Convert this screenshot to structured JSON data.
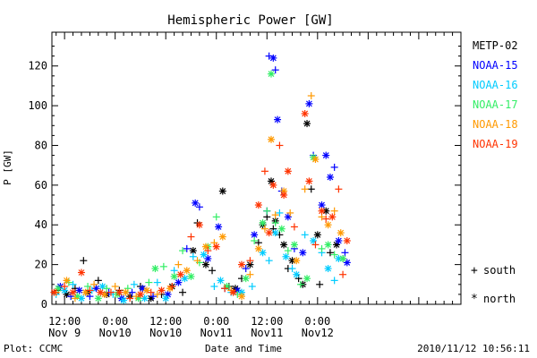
{
  "chart_data": {
    "type": "scatter",
    "title": "Hemispheric Power [GW]",
    "ylabel": "P [GW]",
    "xlabel": "Date and Time",
    "footer_left": "Plot: CCMC",
    "footer_right": "2010/11/12 10:56:11",
    "ylim": [
      0,
      137
    ],
    "xlim": [
      -3,
      94
    ],
    "x_unit": "hours since 2010-11-09 12:00 UT",
    "y_ticks": [
      0,
      20,
      40,
      60,
      80,
      100,
      120
    ],
    "x_ticks": [
      {
        "x": 0,
        "line1": "12:00",
        "line2": "Nov 9"
      },
      {
        "x": 12,
        "line1": "0:00",
        "line2": "Nov10"
      },
      {
        "x": 24,
        "line1": "12:00",
        "line2": "Nov10"
      },
      {
        "x": 36,
        "line1": "0:00",
        "line2": "Nov11"
      },
      {
        "x": 48,
        "line1": "12:00",
        "line2": "Nov11"
      },
      {
        "x": 60,
        "line1": "0:00",
        "line2": "Nov12"
      }
    ],
    "marker_legend": [
      {
        "symbol": "+",
        "label": "south"
      },
      {
        "symbol": "*",
        "label": "north"
      }
    ],
    "series": [
      {
        "name": "METP-02",
        "color": "#000000",
        "points": [
          [
            -1.5,
            7,
            "+"
          ],
          [
            0.5,
            5,
            "*"
          ],
          [
            2.5,
            8,
            "+"
          ],
          [
            4.5,
            22,
            "+"
          ],
          [
            5.5,
            6,
            "*"
          ],
          [
            8,
            12,
            "+"
          ],
          [
            10,
            5,
            "*"
          ],
          [
            13,
            7,
            "+"
          ],
          [
            15.5,
            4,
            "*"
          ],
          [
            18,
            9,
            "+"
          ],
          [
            20.5,
            3,
            "*"
          ],
          [
            23,
            5,
            "+"
          ],
          [
            25.5,
            9,
            "*"
          ],
          [
            28,
            6,
            "+"
          ],
          [
            30.5,
            27,
            "*"
          ],
          [
            31.5,
            41,
            "+"
          ],
          [
            33.5,
            20,
            "*"
          ],
          [
            35,
            17,
            "+"
          ],
          [
            37.5,
            57,
            "*"
          ],
          [
            39,
            9,
            "+"
          ],
          [
            40.5,
            8,
            "*"
          ],
          [
            42,
            13,
            "+"
          ],
          [
            44,
            20,
            "*"
          ],
          [
            46,
            31,
            "+"
          ],
          [
            47,
            40,
            "*"
          ],
          [
            48,
            44,
            "+"
          ],
          [
            49,
            62,
            "*"
          ],
          [
            49.5,
            38,
            "+"
          ],
          [
            50,
            42,
            "*"
          ],
          [
            51,
            35,
            "+"
          ],
          [
            52,
            30,
            "*"
          ],
          [
            53,
            18,
            "+"
          ],
          [
            54,
            22,
            "*"
          ],
          [
            55.5,
            13,
            "+"
          ],
          [
            56.5,
            10,
            "*"
          ],
          [
            57.5,
            91,
            "*"
          ],
          [
            58.5,
            58,
            "+"
          ],
          [
            60,
            35,
            "*"
          ],
          [
            60.5,
            10,
            "+"
          ],
          [
            62,
            47,
            "*"
          ],
          [
            63,
            26,
            "+"
          ],
          [
            64.5,
            30,
            "*"
          ],
          [
            66,
            23,
            "+"
          ]
        ]
      },
      {
        "name": "NOAA-15",
        "color": "#0000ff",
        "points": [
          [
            -1,
            9,
            "*"
          ],
          [
            1.5,
            4,
            "+"
          ],
          [
            3.5,
            7,
            "*"
          ],
          [
            6,
            4,
            "+"
          ],
          [
            7.5,
            8,
            "*"
          ],
          [
            10.5,
            6,
            "+"
          ],
          [
            13.5,
            3,
            "*"
          ],
          [
            16,
            6,
            "+"
          ],
          [
            18.5,
            8,
            "*"
          ],
          [
            21,
            4,
            "+"
          ],
          [
            24.5,
            5,
            "*"
          ],
          [
            27,
            11,
            "*"
          ],
          [
            29,
            28,
            "+"
          ],
          [
            31,
            51,
            "*"
          ],
          [
            32,
            49,
            "+"
          ],
          [
            34,
            23,
            "*"
          ],
          [
            36.5,
            39,
            "*"
          ],
          [
            38,
            8,
            "+"
          ],
          [
            41,
            7,
            "*"
          ],
          [
            43,
            18,
            "+"
          ],
          [
            45,
            35,
            "*"
          ],
          [
            48,
            47,
            "+"
          ],
          [
            48.5,
            125,
            "+"
          ],
          [
            49.5,
            124,
            "*"
          ],
          [
            50,
            118,
            "+"
          ],
          [
            50.5,
            93,
            "*"
          ],
          [
            51.5,
            57,
            "+"
          ],
          [
            53,
            44,
            "*"
          ],
          [
            54.5,
            28,
            "+"
          ],
          [
            56.5,
            26,
            "*"
          ],
          [
            58,
            101,
            "*"
          ],
          [
            59,
            75,
            "+"
          ],
          [
            61,
            50,
            "*"
          ],
          [
            62,
            75,
            "*"
          ],
          [
            63,
            64,
            "*"
          ],
          [
            64,
            69,
            "+"
          ],
          [
            65,
            32,
            "*"
          ],
          [
            66.5,
            26,
            "+"
          ],
          [
            67,
            21,
            "*"
          ]
        ]
      },
      {
        "name": "NOAA-16",
        "color": "#00ccff",
        "points": [
          [
            -2,
            5,
            "+"
          ],
          [
            0,
            7,
            "*"
          ],
          [
            2,
            10,
            "+"
          ],
          [
            4,
            3,
            "*"
          ],
          [
            6.5,
            7,
            "+"
          ],
          [
            9,
            9,
            "*"
          ],
          [
            11.5,
            5,
            "+"
          ],
          [
            14,
            2,
            "*"
          ],
          [
            16.5,
            10,
            "+"
          ],
          [
            19,
            3,
            "*"
          ],
          [
            22,
            11,
            "+"
          ],
          [
            24,
            3,
            "*"
          ],
          [
            26,
            17,
            "+"
          ],
          [
            28.5,
            13,
            "*"
          ],
          [
            30.5,
            24,
            "+"
          ],
          [
            33,
            25,
            "*"
          ],
          [
            35.5,
            9,
            "+"
          ],
          [
            37,
            12,
            "*"
          ],
          [
            39.5,
            6,
            "+"
          ],
          [
            42,
            6,
            "*"
          ],
          [
            44.5,
            9,
            "+"
          ],
          [
            47,
            26,
            "*"
          ],
          [
            48.5,
            22,
            "+"
          ],
          [
            50,
            36,
            "*"
          ],
          [
            51,
            46,
            "+"
          ],
          [
            52.5,
            24,
            "*"
          ],
          [
            54,
            18,
            "+"
          ],
          [
            55,
            15,
            "*"
          ],
          [
            57,
            35,
            "+"
          ],
          [
            59,
            32,
            "*"
          ],
          [
            61,
            26,
            "+"
          ],
          [
            62.5,
            18,
            "*"
          ],
          [
            64,
            12,
            "+"
          ],
          [
            65,
            23,
            "*"
          ]
        ]
      },
      {
        "name": "NOAA-17",
        "color": "#33ee66",
        "points": [
          [
            -1.5,
            8,
            "*"
          ],
          [
            1,
            11,
            "+"
          ],
          [
            3,
            4,
            "*"
          ],
          [
            5.5,
            9,
            "+"
          ],
          [
            8,
            3,
            "*"
          ],
          [
            10,
            8,
            "+"
          ],
          [
            12.5,
            5,
            "*"
          ],
          [
            15,
            8,
            "+"
          ],
          [
            17.5,
            3,
            "*"
          ],
          [
            20,
            11,
            "+"
          ],
          [
            21.5,
            18,
            "*"
          ],
          [
            23.5,
            19,
            "+"
          ],
          [
            26,
            14,
            "*"
          ],
          [
            28,
            27,
            "+"
          ],
          [
            30,
            14,
            "*"
          ],
          [
            32,
            21,
            "+"
          ],
          [
            34,
            29,
            "*"
          ],
          [
            36,
            44,
            "+"
          ],
          [
            38.5,
            9,
            "*"
          ],
          [
            41,
            5,
            "+"
          ],
          [
            43,
            13,
            "*"
          ],
          [
            45,
            32,
            "+"
          ],
          [
            47,
            41,
            "*"
          ],
          [
            48,
            47,
            "+"
          ],
          [
            49,
            116,
            "*"
          ],
          [
            50,
            41,
            "+"
          ],
          [
            51.5,
            38,
            "*"
          ],
          [
            53,
            27,
            "+"
          ],
          [
            54.5,
            30,
            "*"
          ],
          [
            56,
            10,
            "+"
          ],
          [
            57.5,
            13,
            "*"
          ],
          [
            59,
            74,
            "*"
          ],
          [
            61,
            28,
            "+"
          ],
          [
            62.5,
            30,
            "*"
          ],
          [
            64,
            25,
            "+"
          ],
          [
            66,
            23,
            "*"
          ]
        ]
      },
      {
        "name": "NOAA-18",
        "color": "#ff9900",
        "points": [
          [
            -2,
            6,
            "+"
          ],
          [
            0.5,
            12,
            "*"
          ],
          [
            2.5,
            3,
            "+"
          ],
          [
            5,
            6,
            "*"
          ],
          [
            7,
            10,
            "+"
          ],
          [
            9.5,
            5,
            "*"
          ],
          [
            12,
            9,
            "+"
          ],
          [
            14.5,
            6,
            "*"
          ],
          [
            17,
            4,
            "+"
          ],
          [
            19.5,
            7,
            "*"
          ],
          [
            22,
            5,
            "+"
          ],
          [
            25,
            8,
            "*"
          ],
          [
            27,
            20,
            "+"
          ],
          [
            29,
            17,
            "*"
          ],
          [
            31.5,
            22,
            "+"
          ],
          [
            33.5,
            29,
            "*"
          ],
          [
            35.5,
            31,
            "+"
          ],
          [
            37.5,
            34,
            "*"
          ],
          [
            39.5,
            7,
            "+"
          ],
          [
            42,
            4,
            "*"
          ],
          [
            44,
            15,
            "+"
          ],
          [
            46,
            28,
            "*"
          ],
          [
            47.5,
            38,
            "+"
          ],
          [
            49,
            83,
            "*"
          ],
          [
            50,
            45,
            "+"
          ],
          [
            52,
            57,
            "*"
          ],
          [
            53.5,
            46,
            "+"
          ],
          [
            55,
            22,
            "*"
          ],
          [
            57,
            58,
            "+"
          ],
          [
            58.5,
            105,
            "+"
          ],
          [
            59.5,
            73,
            "*"
          ],
          [
            61,
            44,
            "+"
          ],
          [
            62.5,
            40,
            "*"
          ],
          [
            64,
            47,
            "+"
          ],
          [
            65.5,
            36,
            "*"
          ]
        ]
      },
      {
        "name": "NOAA-19",
        "color": "#ff3300",
        "points": [
          [
            -2.5,
            6,
            "*"
          ],
          [
            0,
            9,
            "+"
          ],
          [
            2,
            6,
            "*"
          ],
          [
            4,
            16,
            "*"
          ],
          [
            6,
            7,
            "+"
          ],
          [
            8.5,
            6,
            "*"
          ],
          [
            11,
            6,
            "+"
          ],
          [
            13,
            6,
            "*"
          ],
          [
            15.5,
            3,
            "+"
          ],
          [
            18,
            5,
            "*"
          ],
          [
            20.5,
            6,
            "+"
          ],
          [
            23,
            7,
            "*"
          ],
          [
            25.5,
            9,
            "+"
          ],
          [
            27.5,
            15,
            "*"
          ],
          [
            30,
            34,
            "+"
          ],
          [
            32,
            40,
            "*"
          ],
          [
            34,
            27,
            "+"
          ],
          [
            36,
            29,
            "*"
          ],
          [
            38,
            8,
            "+"
          ],
          [
            40,
            6,
            "*"
          ],
          [
            42,
            20,
            "*"
          ],
          [
            44,
            22,
            "+"
          ],
          [
            46,
            50,
            "*"
          ],
          [
            47.5,
            67,
            "+"
          ],
          [
            48.5,
            36,
            "*"
          ],
          [
            49.5,
            60,
            "*"
          ],
          [
            51,
            80,
            "+"
          ],
          [
            52,
            55,
            "*"
          ],
          [
            53,
            67,
            "*"
          ],
          [
            54.5,
            39,
            "+"
          ],
          [
            57,
            96,
            "*"
          ],
          [
            58,
            62,
            "*"
          ],
          [
            59.5,
            30,
            "+"
          ],
          [
            61,
            47,
            "*"
          ],
          [
            62,
            43,
            "+"
          ],
          [
            63.5,
            44,
            "*"
          ],
          [
            65,
            58,
            "+"
          ],
          [
            66,
            15,
            "+"
          ],
          [
            67,
            32,
            "*"
          ]
        ]
      }
    ]
  }
}
